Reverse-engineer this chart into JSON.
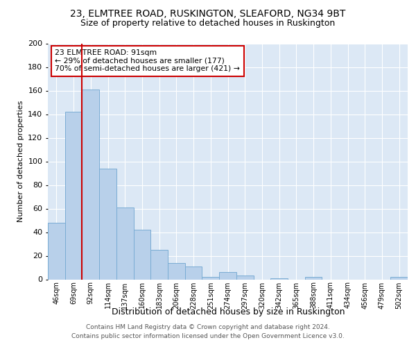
{
  "title1": "23, ELMTREE ROAD, RUSKINGTON, SLEAFORD, NG34 9BT",
  "title2": "Size of property relative to detached houses in Ruskington",
  "xlabel": "Distribution of detached houses by size in Ruskington",
  "ylabel": "Number of detached properties",
  "footnote1": "Contains HM Land Registry data © Crown copyright and database right 2024.",
  "footnote2": "Contains public sector information licensed under the Open Government Licence v3.0.",
  "bin_labels": [
    "46sqm",
    "69sqm",
    "92sqm",
    "114sqm",
    "137sqm",
    "160sqm",
    "183sqm",
    "206sqm",
    "228sqm",
    "251sqm",
    "274sqm",
    "297sqm",
    "320sqm",
    "342sqm",
    "365sqm",
    "388sqm",
    "411sqm",
    "434sqm",
    "456sqm",
    "479sqm",
    "502sqm"
  ],
  "bar_values": [
    48,
    142,
    161,
    94,
    61,
    42,
    25,
    14,
    11,
    2,
    6,
    3,
    0,
    1,
    0,
    2,
    0,
    0,
    0,
    0,
    2
  ],
  "bar_color": "#b8d0ea",
  "bar_edge_color": "#7aacd4",
  "property_line_color": "#cc0000",
  "annotation_text": "23 ELMTREE ROAD: 91sqm\n← 29% of detached houses are smaller (177)\n70% of semi-detached houses are larger (421) →",
  "annotation_box_color": "#ffffff",
  "annotation_box_edge_color": "#cc0000",
  "ylim": [
    0,
    200
  ],
  "yticks": [
    0,
    20,
    40,
    60,
    80,
    100,
    120,
    140,
    160,
    180,
    200
  ],
  "background_color": "#dce8f5",
  "grid_color": "#ffffff",
  "fig_background": "#ffffff",
  "title1_fontsize": 10,
  "title2_fontsize": 9,
  "ylabel_fontsize": 8,
  "xlabel_fontsize": 9
}
